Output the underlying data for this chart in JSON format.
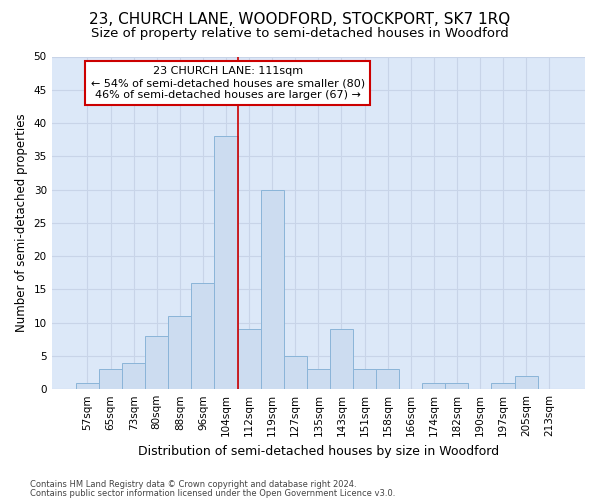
{
  "title": "23, CHURCH LANE, WOODFORD, STOCKPORT, SK7 1RQ",
  "subtitle": "Size of property relative to semi-detached houses in Woodford",
  "xlabel": "Distribution of semi-detached houses by size in Woodford",
  "ylabel": "Number of semi-detached properties",
  "footnote1": "Contains HM Land Registry data © Crown copyright and database right 2024.",
  "footnote2": "Contains public sector information licensed under the Open Government Licence v3.0.",
  "bar_labels": [
    "57sqm",
    "65sqm",
    "73sqm",
    "80sqm",
    "88sqm",
    "96sqm",
    "104sqm",
    "112sqm",
    "119sqm",
    "127sqm",
    "135sqm",
    "143sqm",
    "151sqm",
    "158sqm",
    "166sqm",
    "174sqm",
    "182sqm",
    "190sqm",
    "197sqm",
    "205sqm",
    "213sqm"
  ],
  "bar_values": [
    1,
    3,
    4,
    8,
    11,
    16,
    38,
    9,
    30,
    5,
    3,
    9,
    3,
    3,
    0,
    1,
    1,
    0,
    1,
    2,
    0
  ],
  "bar_color": "#ccdcf0",
  "bar_edge_color": "#8ab4d8",
  "vline_pos": 6.5,
  "vline_color": "#cc0000",
  "annotation_title": "23 CHURCH LANE: 111sqm",
  "annotation_line2": "← 54% of semi-detached houses are smaller (80)",
  "annotation_line3": "46% of semi-detached houses are larger (67) →",
  "annotation_box_color": "#ffffff",
  "annotation_box_edge": "#cc0000",
  "ylim": [
    0,
    50
  ],
  "yticks": [
    0,
    5,
    10,
    15,
    20,
    25,
    30,
    35,
    40,
    45,
    50
  ],
  "grid_color": "#c8d4e8",
  "bg_color": "#dce8f8",
  "fig_bg_color": "#ffffff",
  "title_fontsize": 11,
  "subtitle_fontsize": 9.5,
  "tick_fontsize": 7.5,
  "ylabel_fontsize": 8.5,
  "xlabel_fontsize": 9,
  "annotation_fontsize": 8,
  "footnote_fontsize": 6
}
